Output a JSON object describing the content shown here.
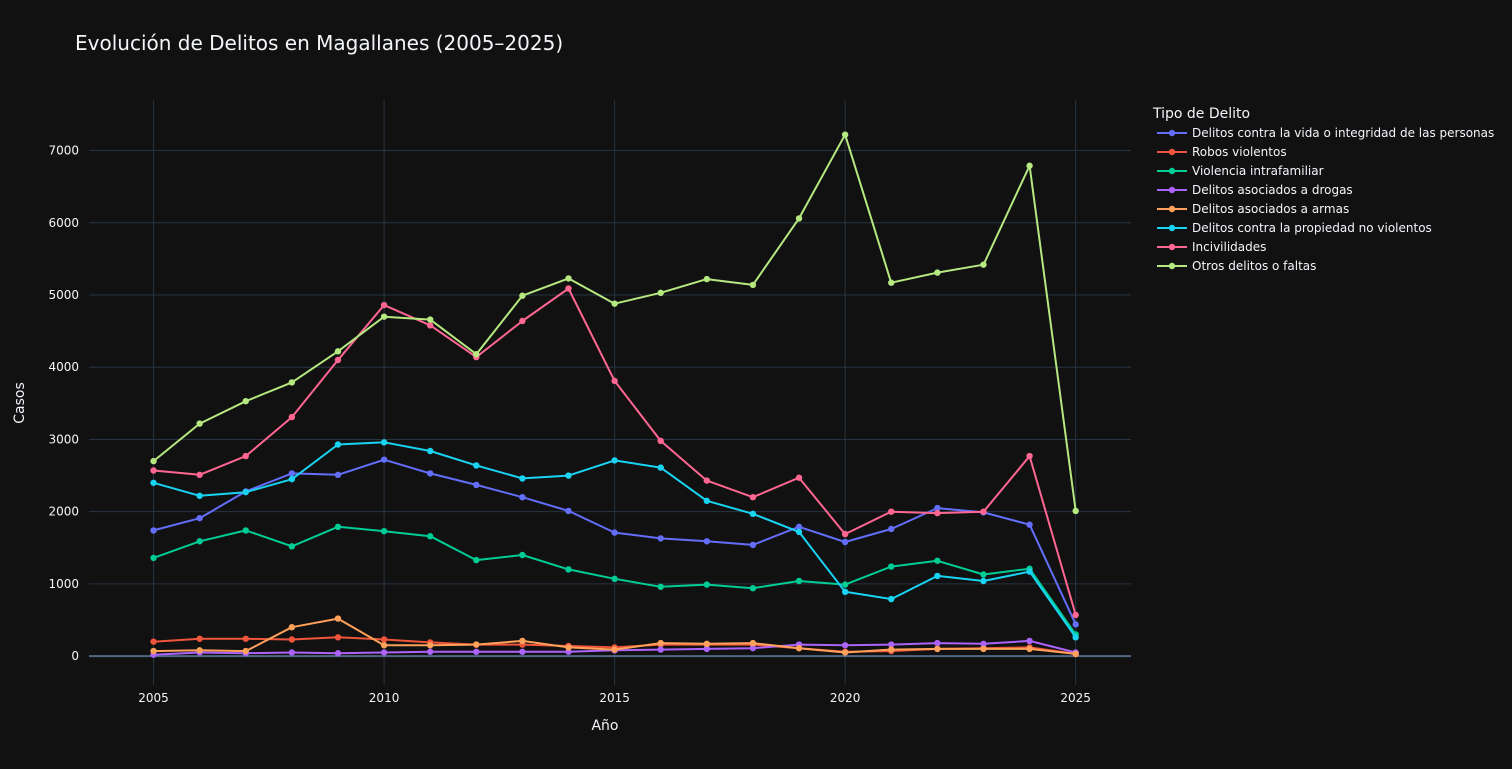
{
  "chart_data": {
    "type": "line",
    "title": "Evolución de Delitos en Magallanes (2005–2025)",
    "xlabel": "Año",
    "ylabel": "Casos",
    "legend_title": "Tipo de Delito",
    "legend_position": "top-right",
    "grid": true,
    "xlim": [
      2003.6,
      2026.2
    ],
    "ylim": [
      -400,
      7700
    ],
    "x_ticks": [
      2005,
      2010,
      2015,
      2020,
      2025
    ],
    "x_tick_labels": [
      "2005",
      "2010",
      "2015",
      "2020",
      "2025"
    ],
    "y_ticks": [
      0,
      1000,
      2000,
      3000,
      4000,
      5000,
      6000,
      7000
    ],
    "y_tick_labels": [
      "0",
      "1000",
      "2000",
      "3000",
      "4000",
      "5000",
      "6000",
      "7000"
    ],
    "x": [
      2005,
      2006,
      2007,
      2008,
      2009,
      2010,
      2011,
      2012,
      2013,
      2014,
      2015,
      2016,
      2017,
      2018,
      2019,
      2020,
      2021,
      2022,
      2023,
      2024,
      2025
    ],
    "series": [
      {
        "name": "Delitos contra la vida o integridad de las personas",
        "color": "#636efa",
        "values": [
          1740,
          1910,
          2280,
          2530,
          2510,
          2720,
          2530,
          2370,
          2200,
          2010,
          1710,
          1630,
          1590,
          1540,
          1790,
          1580,
          1760,
          2050,
          1990,
          1820,
          440
        ]
      },
      {
        "name": "Robos violentos",
        "color": "#EF553B",
        "values": [
          200,
          240,
          240,
          230,
          260,
          230,
          190,
          160,
          160,
          140,
          120,
          160,
          160,
          160,
          110,
          60,
          70,
          100,
          110,
          120,
          30
        ]
      },
      {
        "name": "Violencia intrafamiliar",
        "color": "#00cc96",
        "values": [
          1360,
          1590,
          1740,
          1520,
          1790,
          1730,
          1660,
          1330,
          1400,
          1200,
          1070,
          960,
          990,
          940,
          1040,
          990,
          1240,
          1320,
          1130,
          1210,
          300
        ]
      },
      {
        "name": "Delitos asociados a drogas",
        "color": "#ab63fa",
        "values": [
          20,
          50,
          40,
          50,
          40,
          50,
          60,
          60,
          60,
          60,
          80,
          90,
          100,
          110,
          160,
          150,
          160,
          180,
          170,
          210,
          50
        ]
      },
      {
        "name": "Delitos asociados a armas",
        "color": "#FFA15A",
        "values": [
          70,
          80,
          70,
          400,
          520,
          150,
          150,
          160,
          210,
          120,
          90,
          180,
          170,
          180,
          110,
          50,
          90,
          100,
          100,
          100,
          30
        ]
      },
      {
        "name": "Delitos contra la propiedad no violentos",
        "color": "#19d3f3",
        "values": [
          2400,
          2220,
          2270,
          2450,
          2930,
          2960,
          2840,
          2640,
          2460,
          2500,
          2710,
          2610,
          2150,
          1970,
          1720,
          890,
          790,
          1110,
          1040,
          1170,
          260
        ]
      },
      {
        "name": "Incivilidades",
        "color": "#FF6692",
        "values": [
          2570,
          2510,
          2770,
          3310,
          4100,
          4860,
          4580,
          4140,
          4640,
          5090,
          3810,
          2980,
          2430,
          2200,
          2470,
          1690,
          2000,
          1980,
          2000,
          2770,
          570
        ]
      },
      {
        "name": "Otros delitos o faltas",
        "color": "#B6E880",
        "values": [
          2700,
          3220,
          3530,
          3790,
          4220,
          4700,
          4660,
          4180,
          4990,
          5230,
          4880,
          5030,
          5220,
          5140,
          6060,
          7220,
          5170,
          5310,
          5420,
          6790,
          2010
        ]
      }
    ]
  }
}
